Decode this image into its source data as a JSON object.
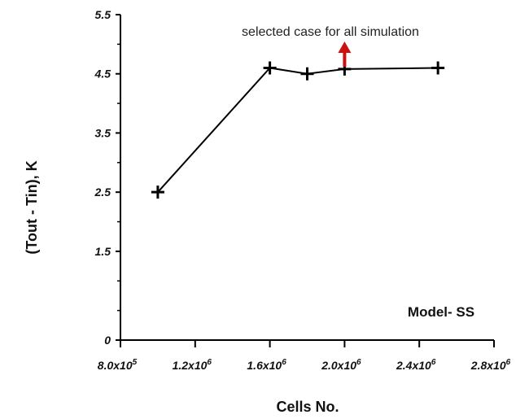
{
  "chart_data": {
    "type": "line",
    "title": "",
    "xlabel": "Cells No.",
    "ylabel": "(Tout - Tin), K",
    "xlim": [
      800000,
      2800000
    ],
    "ylim": [
      0,
      5.5
    ],
    "grid": false,
    "legend": "none",
    "x_ticks": [
      {
        "value": 800000,
        "mantissa": "8.0x10",
        "exp": "5"
      },
      {
        "value": 1200000,
        "mantissa": "1.2x10",
        "exp": "6"
      },
      {
        "value": 1600000,
        "mantissa": "1.6x10",
        "exp": "6"
      },
      {
        "value": 2000000,
        "mantissa": "2.0x10",
        "exp": "6"
      },
      {
        "value": 2400000,
        "mantissa": "2.4x10",
        "exp": "6"
      },
      {
        "value": 2800000,
        "mantissa": "2.8x10",
        "exp": "6"
      }
    ],
    "y_ticks": [
      {
        "value": 0,
        "label": "0"
      },
      {
        "value": 1.5,
        "label": "1.5"
      },
      {
        "value": 2.5,
        "label": "2.5"
      },
      {
        "value": 3.5,
        "label": "3.5"
      },
      {
        "value": 4.5,
        "label": "4.5"
      },
      {
        "value": 5.5,
        "label": "5.5"
      }
    ],
    "y_minor_ticks": [
      0.5,
      1.0,
      2.0,
      3.0,
      4.0,
      5.0
    ],
    "series": [
      {
        "x": [
          1000000,
          1600000,
          1800000,
          2000000,
          2500000
        ],
        "y": [
          2.5,
          4.6,
          4.5,
          4.58,
          4.6
        ]
      }
    ],
    "annotations": [
      {
        "text": "selected case for all simulation",
        "arrow_x": 2000000,
        "arrow_color": "#cc1111"
      },
      {
        "text": "Model- SS"
      }
    ]
  },
  "colors": {
    "line": "#000000",
    "arrow": "#cc1111"
  }
}
